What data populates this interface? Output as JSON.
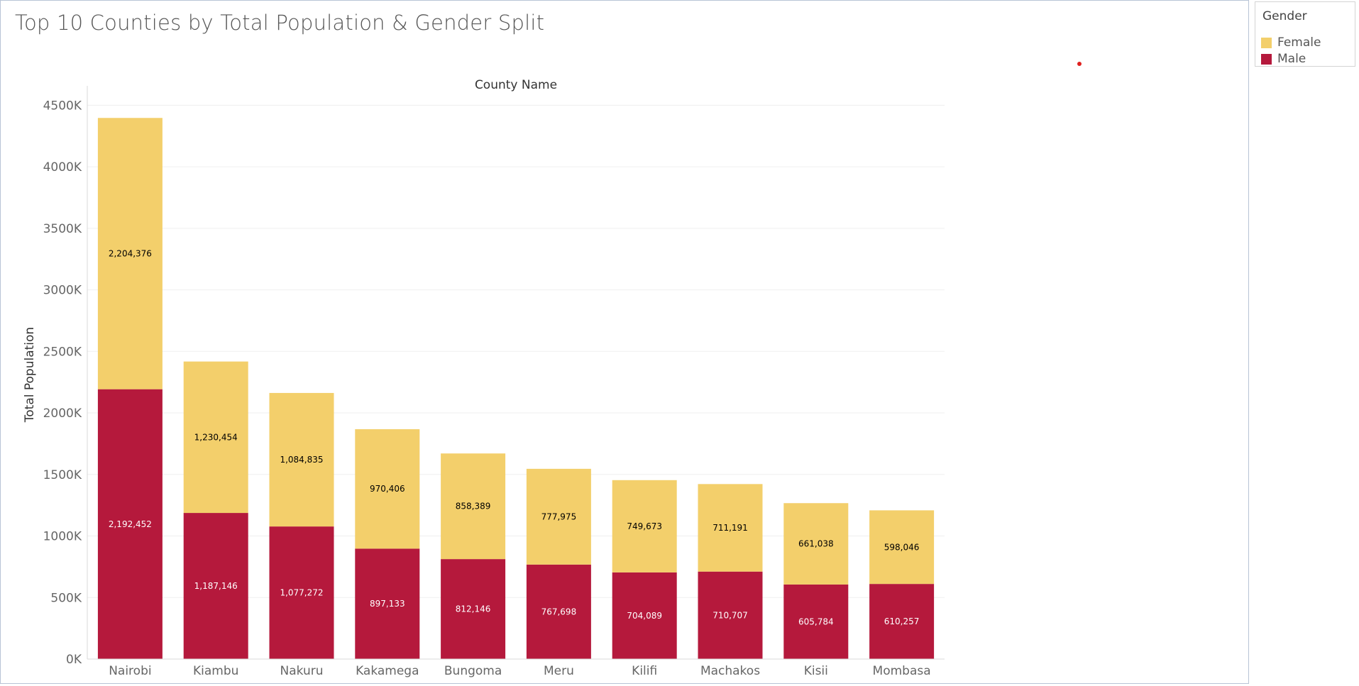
{
  "legend": {
    "title": "Gender",
    "items": [
      {
        "label": "Female",
        "color": "#F3CF6B"
      },
      {
        "label": "Male",
        "color": "#B5193C"
      }
    ]
  },
  "chart_data": {
    "type": "bar",
    "stacked": true,
    "title": "Top 10 Counties by Total Population & Gender Split",
    "xlabel": "County Name",
    "ylabel": "Total Population",
    "ylim": [
      0,
      4600000
    ],
    "yticks": [
      0,
      500000,
      1000000,
      1500000,
      2000000,
      2500000,
      3000000,
      3500000,
      4000000,
      4500000
    ],
    "ytick_labels": [
      "0K",
      "500K",
      "1000K",
      "1500K",
      "2000K",
      "2500K",
      "3000K",
      "3500K",
      "4000K",
      "4500K"
    ],
    "grid": true,
    "legend_position": "top-right",
    "categories": [
      "Nairobi",
      "Kiambu",
      "Nakuru",
      "Kakamega",
      "Bungoma",
      "Meru",
      "Kilifi",
      "Machakos",
      "Kisii",
      "Mombasa"
    ],
    "series": [
      {
        "name": "Male",
        "color": "#B5193C",
        "label_color": "#ffffff",
        "values": [
          2192452,
          1187146,
          1077272,
          897133,
          812146,
          767698,
          704089,
          710707,
          605784,
          610257
        ],
        "labels": [
          "2,192,452",
          "1,187,146",
          "1,077,272",
          "897,133",
          "812,146",
          "767,698",
          "704,089",
          "710,707",
          "605,784",
          "610,257"
        ]
      },
      {
        "name": "Female",
        "color": "#F3CF6B",
        "label_color": "#000000",
        "values": [
          2204376,
          1230454,
          1084835,
          970406,
          858389,
          777975,
          749673,
          711191,
          661038,
          598046
        ],
        "labels": [
          "2,204,376",
          "1,230,454",
          "1,084,835",
          "970,406",
          "858,389",
          "777,975",
          "749,673",
          "711,191",
          "661,038",
          "598,046"
        ]
      }
    ]
  }
}
